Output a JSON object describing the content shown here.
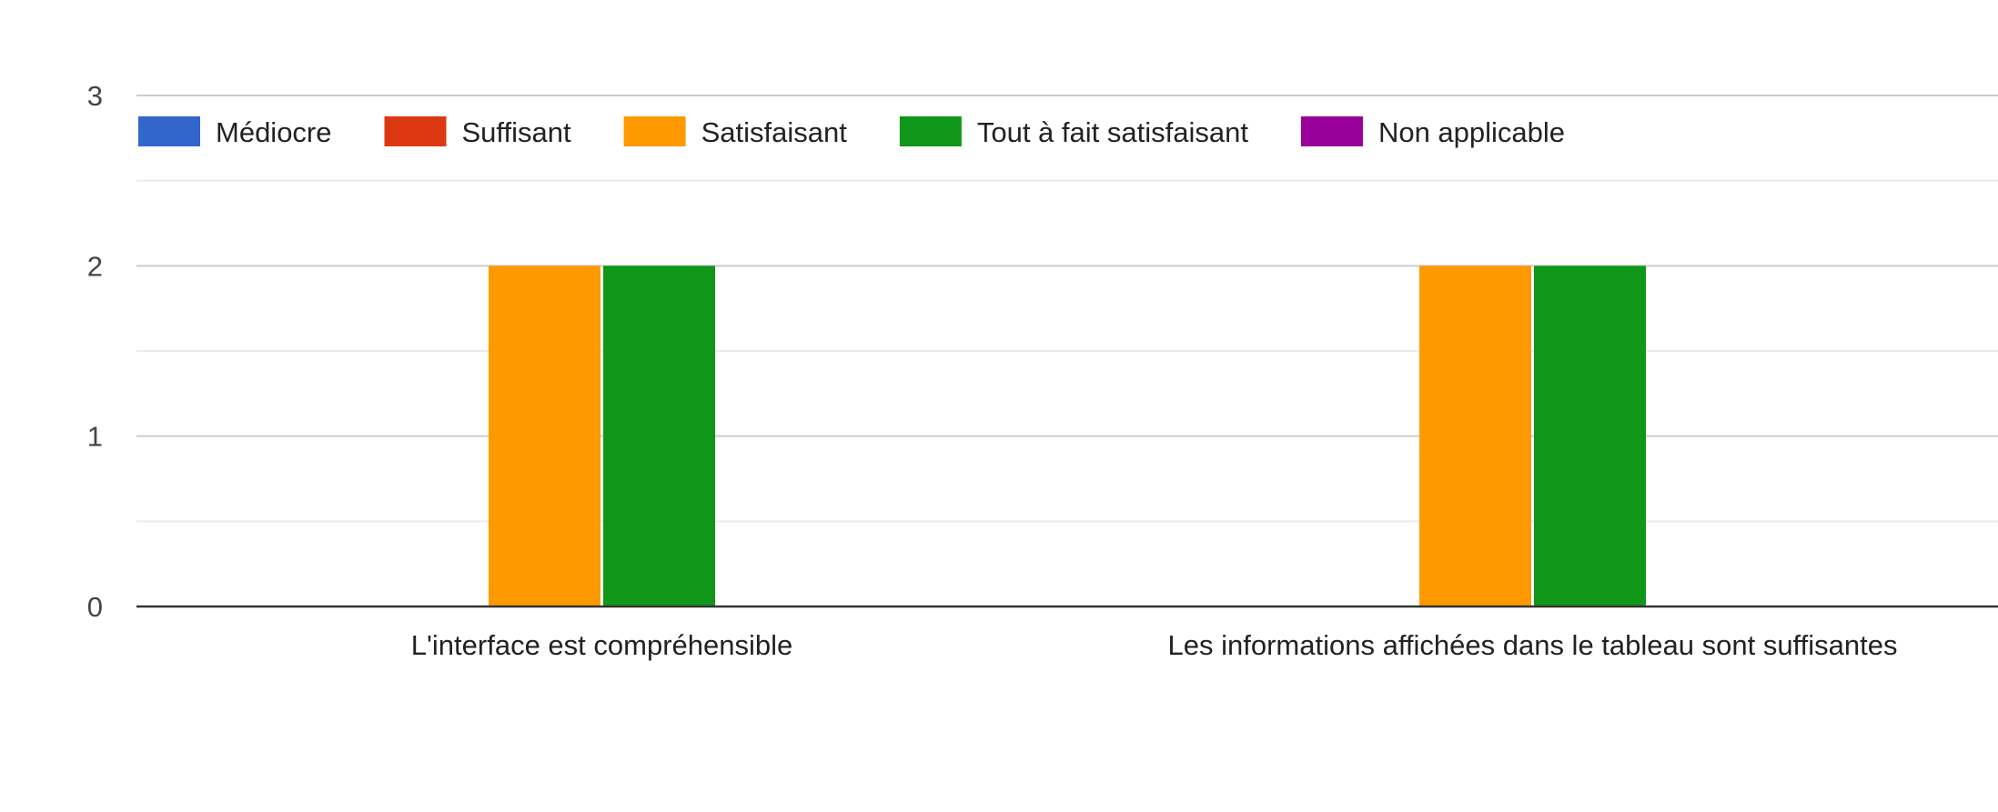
{
  "chart_data": {
    "type": "bar",
    "title": "",
    "xlabel": "",
    "ylabel": "",
    "ylim": [
      0,
      3
    ],
    "yticks": [
      0,
      1,
      2,
      3
    ],
    "grid": true,
    "legend_position": "top-left",
    "categories": [
      "L'interface est compréhensible",
      "Les informations affichées dans le tableau sont suffisantes"
    ],
    "series": [
      {
        "name": "Médiocre",
        "color": "#3366cc",
        "values": [
          0,
          0
        ]
      },
      {
        "name": "Suffisant",
        "color": "#dc3912",
        "values": [
          0,
          0
        ]
      },
      {
        "name": "Satisfaisant",
        "color": "#ff9900",
        "values": [
          2,
          2
        ]
      },
      {
        "name": "Tout à fait satisfaisant",
        "color": "#109618",
        "values": [
          2,
          2
        ]
      },
      {
        "name": "Non applicable",
        "color": "#990099",
        "values": [
          0,
          0
        ]
      }
    ]
  }
}
